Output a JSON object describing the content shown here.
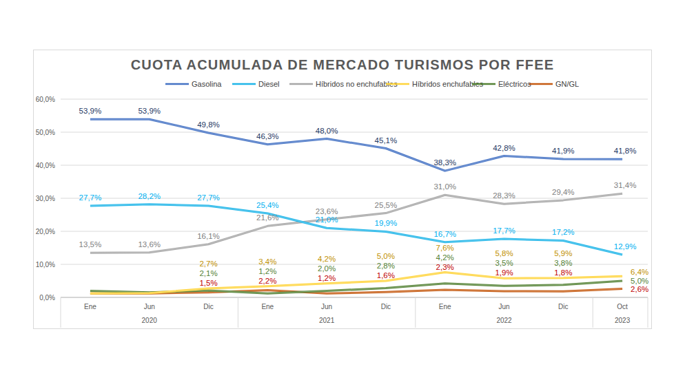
{
  "chart_data": {
    "type": "line",
    "title": "CUOTA ACUMULADA DE MERCADO TURISMOS POR FFEE",
    "categories": [
      "Ene",
      "Jun",
      "Dic",
      "Ene",
      "Jun",
      "Dic",
      "Ene",
      "Jun",
      "Dic",
      "Oct"
    ],
    "category_groups": [
      {
        "label": "2020",
        "count": 3
      },
      {
        "label": "2021",
        "count": 3
      },
      {
        "label": "2022",
        "count": 3
      },
      {
        "label": "2023",
        "count": 1
      }
    ],
    "series": [
      {
        "name": "Gasolina",
        "color": "#4472c4",
        "values": [
          53.9,
          53.9,
          49.8,
          46.3,
          48.0,
          45.1,
          38.3,
          42.8,
          41.9,
          41.8
        ],
        "value_labels": [
          "53,9%",
          "53,9%",
          "49,8%",
          "46,3%",
          "48,0%",
          "45,1%",
          "38,3%",
          "42,8%",
          "41,9%",
          "41,8%"
        ]
      },
      {
        "name": "Diesel",
        "color": "#1fb5e8",
        "values": [
          27.7,
          28.2,
          27.7,
          25.4,
          21.0,
          19.9,
          16.7,
          17.7,
          17.2,
          12.9
        ],
        "value_labels": [
          "27,7%",
          "28,2%",
          "27,7%",
          "25,4%",
          "21,0%",
          "19,9%",
          "16,7%",
          "17,7%",
          "17,2%",
          "12,9%"
        ]
      },
      {
        "name": "Híbridos no enchufables",
        "color": "#a6a6a6",
        "values": [
          13.5,
          13.6,
          16.1,
          21.6,
          23.6,
          25.5,
          31.0,
          28.3,
          29.4,
          31.4
        ],
        "value_labels": [
          "13,5%",
          "13,6%",
          "16,1%",
          "21,6%",
          "23,6%",
          "25,5%",
          "31,0%",
          "28,3%",
          "29,4%",
          "31,4%"
        ]
      },
      {
        "name": "Híbridos enchufables",
        "color": "#ffd43b",
        "values": [
          1.2,
          1.3,
          2.7,
          3.4,
          4.2,
          5.0,
          7.6,
          5.8,
          5.9,
          6.4
        ],
        "value_labels": [
          null,
          null,
          "2,7%",
          "3,4%",
          "4,2%",
          "5,0%",
          "7,6%",
          "5,8%",
          "5,9%",
          "6,4%"
        ]
      },
      {
        "name": "Eléctricos",
        "color": "#548235",
        "values": [
          2.0,
          1.5,
          2.1,
          1.2,
          2.0,
          2.8,
          4.2,
          3.5,
          3.8,
          5.0
        ],
        "value_labels": [
          null,
          null,
          "2,1%",
          "1,2%",
          "2,0%",
          "2,8%",
          "4,2%",
          "3,5%",
          "3,8%",
          "5,0%"
        ]
      },
      {
        "name": "GN/GL",
        "color": "#c55a11",
        "values": [
          1.2,
          1.2,
          1.5,
          2.2,
          1.2,
          1.6,
          2.3,
          1.9,
          1.8,
          2.6
        ],
        "value_labels": [
          null,
          null,
          "1,5%",
          "2,2%",
          "1,2%",
          "1,6%",
          "2,3%",
          "1,9%",
          "1,8%",
          "2,6%"
        ]
      }
    ],
    "ylim": [
      0,
      60
    ],
    "yticks": [
      {
        "value": 0,
        "label": "0,0%"
      },
      {
        "value": 10,
        "label": "10,0%"
      },
      {
        "value": 20,
        "label": "20,0%"
      },
      {
        "value": 30,
        "label": "30,0%"
      },
      {
        "value": 40,
        "label": "40,0%"
      },
      {
        "value": 50,
        "label": "50,0%"
      },
      {
        "value": 60,
        "label": "60,0%"
      }
    ],
    "grid": true,
    "legend": "top",
    "data_labels": true,
    "marker": "none",
    "line_style": "solid"
  }
}
